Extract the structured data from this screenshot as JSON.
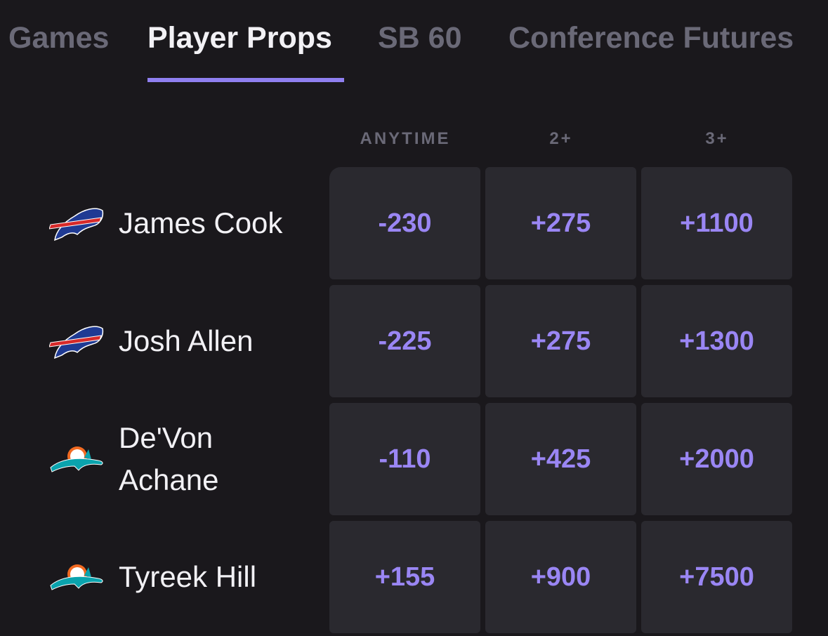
{
  "tabs": [
    {
      "label": "Games",
      "active": false
    },
    {
      "label": "Player Props",
      "active": true
    },
    {
      "label": "SB 60",
      "active": false
    },
    {
      "label": "Conference Futures",
      "active": false
    }
  ],
  "accent_color": "#8f7ff0",
  "columns": [
    "ANYTIME",
    "2+",
    "3+"
  ],
  "rows": [
    {
      "player": "James Cook",
      "team_logo": "bills-logo",
      "odds": [
        "-230",
        "+275",
        "+1100"
      ]
    },
    {
      "player": "Josh Allen",
      "team_logo": "bills-logo",
      "odds": [
        "-225",
        "+275",
        "+1300"
      ]
    },
    {
      "player": "De'Von Achane",
      "team_logo": "dolphins-logo",
      "odds": [
        "-110",
        "+425",
        "+2000"
      ]
    },
    {
      "player": "Tyreek Hill",
      "team_logo": "dolphins-logo",
      "odds": [
        "+155",
        "+900",
        "+7500"
      ]
    }
  ]
}
